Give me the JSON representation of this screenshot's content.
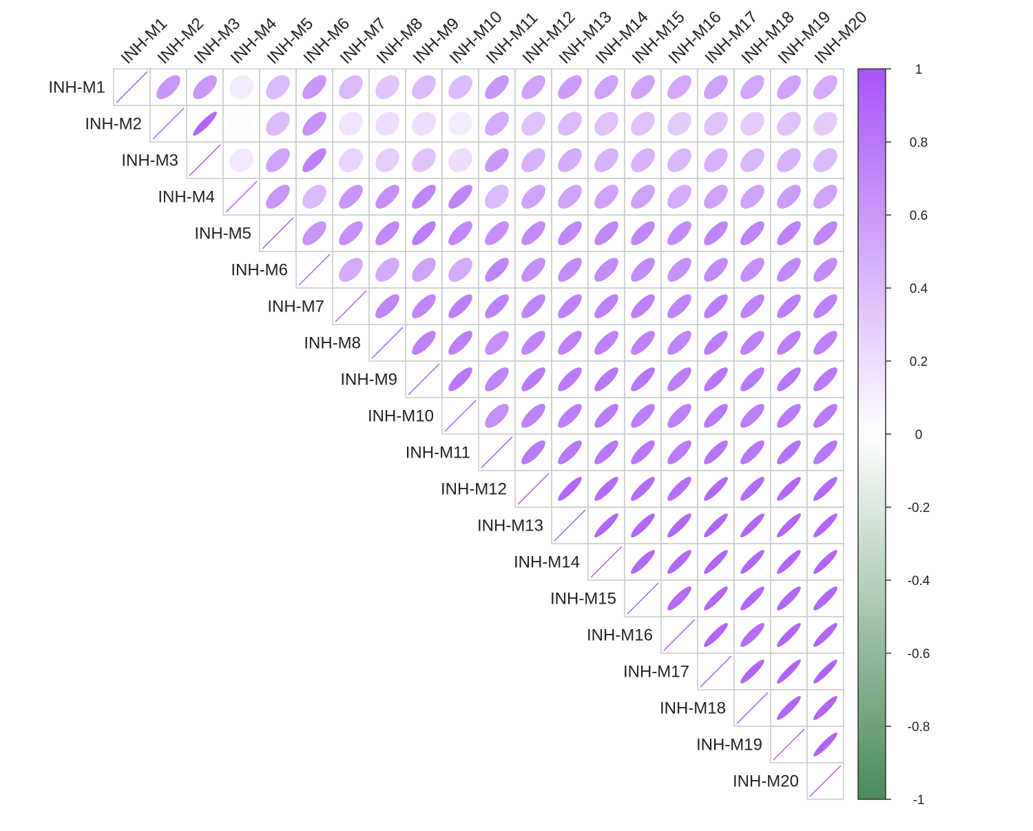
{
  "chart_data": {
    "type": "heatmap",
    "subtype": "upper-triangle correlation ellipse plot",
    "labels": [
      "INH-M1",
      "INH-M2",
      "INH-M3",
      "INH-M4",
      "INH-M5",
      "INH-M6",
      "INH-M7",
      "INH-M8",
      "INH-M9",
      "INH-M10",
      "INH-M11",
      "INH-M12",
      "INH-M13",
      "INH-M14",
      "INH-M15",
      "INH-M16",
      "INH-M17",
      "INH-M18",
      "INH-M19",
      "INH-M20"
    ],
    "matrix": [
      [
        1,
        0.62,
        0.6,
        0.12,
        0.4,
        0.62,
        0.4,
        0.34,
        0.4,
        0.4,
        0.62,
        0.55,
        0.58,
        0.55,
        0.55,
        0.52,
        0.55,
        0.52,
        0.55,
        0.5
      ],
      [
        0.62,
        1,
        0.9,
        0.02,
        0.4,
        0.64,
        0.16,
        0.2,
        0.2,
        0.12,
        0.5,
        0.36,
        0.4,
        0.36,
        0.36,
        0.3,
        0.36,
        0.3,
        0.36,
        0.3
      ],
      [
        0.6,
        0.9,
        1,
        0.14,
        0.55,
        0.75,
        0.25,
        0.28,
        0.35,
        0.2,
        0.6,
        0.45,
        0.48,
        0.45,
        0.45,
        0.42,
        0.45,
        0.42,
        0.45,
        0.4
      ],
      [
        0.12,
        0.02,
        0.14,
        1,
        0.62,
        0.4,
        0.62,
        0.66,
        0.72,
        0.72,
        0.4,
        0.55,
        0.55,
        0.55,
        0.55,
        0.48,
        0.55,
        0.55,
        0.58,
        0.55
      ],
      [
        0.4,
        0.4,
        0.55,
        0.62,
        1,
        0.62,
        0.66,
        0.7,
        0.76,
        0.7,
        0.66,
        0.68,
        0.7,
        0.7,
        0.7,
        0.68,
        0.72,
        0.72,
        0.74,
        0.72
      ],
      [
        0.62,
        0.64,
        0.75,
        0.4,
        0.62,
        1,
        0.5,
        0.5,
        0.55,
        0.5,
        0.72,
        0.66,
        0.68,
        0.68,
        0.68,
        0.64,
        0.68,
        0.66,
        0.7,
        0.68
      ],
      [
        0.4,
        0.16,
        0.25,
        0.62,
        0.66,
        0.5,
        1,
        0.72,
        0.72,
        0.76,
        0.74,
        0.72,
        0.74,
        0.74,
        0.74,
        0.72,
        0.76,
        0.74,
        0.76,
        0.74
      ],
      [
        0.34,
        0.2,
        0.28,
        0.66,
        0.7,
        0.5,
        0.72,
        1,
        0.74,
        0.76,
        0.66,
        0.72,
        0.74,
        0.74,
        0.74,
        0.72,
        0.76,
        0.74,
        0.76,
        0.74
      ],
      [
        0.4,
        0.2,
        0.35,
        0.72,
        0.76,
        0.55,
        0.72,
        0.74,
        1,
        0.8,
        0.72,
        0.78,
        0.78,
        0.8,
        0.8,
        0.76,
        0.8,
        0.78,
        0.8,
        0.78
      ],
      [
        0.4,
        0.12,
        0.2,
        0.72,
        0.7,
        0.5,
        0.76,
        0.76,
        0.8,
        1,
        0.66,
        0.74,
        0.76,
        0.78,
        0.76,
        0.74,
        0.78,
        0.76,
        0.78,
        0.78
      ],
      [
        0.62,
        0.5,
        0.6,
        0.4,
        0.66,
        0.72,
        0.74,
        0.66,
        0.72,
        0.66,
        1,
        0.78,
        0.8,
        0.8,
        0.8,
        0.78,
        0.82,
        0.8,
        0.82,
        0.8
      ],
      [
        0.55,
        0.36,
        0.45,
        0.55,
        0.68,
        0.66,
        0.72,
        0.72,
        0.78,
        0.74,
        0.78,
        1,
        0.88,
        0.86,
        0.86,
        0.84,
        0.88,
        0.86,
        0.88,
        0.88
      ],
      [
        0.58,
        0.4,
        0.48,
        0.55,
        0.7,
        0.68,
        0.74,
        0.74,
        0.78,
        0.76,
        0.8,
        0.88,
        1,
        0.9,
        0.88,
        0.88,
        0.9,
        0.9,
        0.9,
        0.9
      ],
      [
        0.55,
        0.36,
        0.45,
        0.55,
        0.7,
        0.68,
        0.74,
        0.74,
        0.8,
        0.78,
        0.8,
        0.86,
        0.9,
        1,
        0.88,
        0.88,
        0.9,
        0.9,
        0.9,
        0.9
      ],
      [
        0.55,
        0.36,
        0.45,
        0.55,
        0.7,
        0.68,
        0.74,
        0.74,
        0.8,
        0.76,
        0.8,
        0.86,
        0.88,
        0.88,
        1,
        0.86,
        0.9,
        0.88,
        0.88,
        0.88
      ],
      [
        0.52,
        0.3,
        0.42,
        0.48,
        0.68,
        0.64,
        0.72,
        0.72,
        0.76,
        0.74,
        0.78,
        0.84,
        0.88,
        0.88,
        0.86,
        1,
        0.9,
        0.86,
        0.9,
        0.9
      ],
      [
        0.55,
        0.36,
        0.45,
        0.55,
        0.72,
        0.68,
        0.76,
        0.76,
        0.8,
        0.78,
        0.82,
        0.88,
        0.9,
        0.9,
        0.9,
        0.9,
        1,
        0.9,
        0.92,
        0.92
      ],
      [
        0.52,
        0.3,
        0.42,
        0.55,
        0.72,
        0.66,
        0.74,
        0.74,
        0.78,
        0.76,
        0.8,
        0.86,
        0.9,
        0.9,
        0.88,
        0.86,
        0.9,
        1,
        0.9,
        0.9
      ],
      [
        0.55,
        0.36,
        0.45,
        0.58,
        0.74,
        0.7,
        0.76,
        0.76,
        0.8,
        0.78,
        0.82,
        0.88,
        0.9,
        0.9,
        0.88,
        0.9,
        0.92,
        0.9,
        1,
        0.92
      ],
      [
        0.5,
        0.3,
        0.4,
        0.55,
        0.72,
        0.68,
        0.74,
        0.74,
        0.78,
        0.78,
        0.8,
        0.88,
        0.9,
        0.9,
        0.88,
        0.9,
        0.92,
        0.9,
        0.92,
        1
      ]
    ],
    "colorbar": {
      "ticks": [
        "1",
        "0.8",
        "0.6",
        "0.4",
        "0.2",
        "0",
        "-0.2",
        "-0.4",
        "-0.6",
        "-0.8",
        "-1"
      ],
      "range": [
        -1,
        1
      ],
      "high_color": "#a855f7",
      "mid_color": "#ffffff",
      "low_color": "#4a8a5a"
    },
    "title": "",
    "xlabel": "",
    "ylabel": ""
  },
  "colors": {
    "positive": "#a855f7",
    "neutral": "#ffffff",
    "negative": "#4a8a5a",
    "grid": "#c8c8c8",
    "text": "#222222"
  }
}
